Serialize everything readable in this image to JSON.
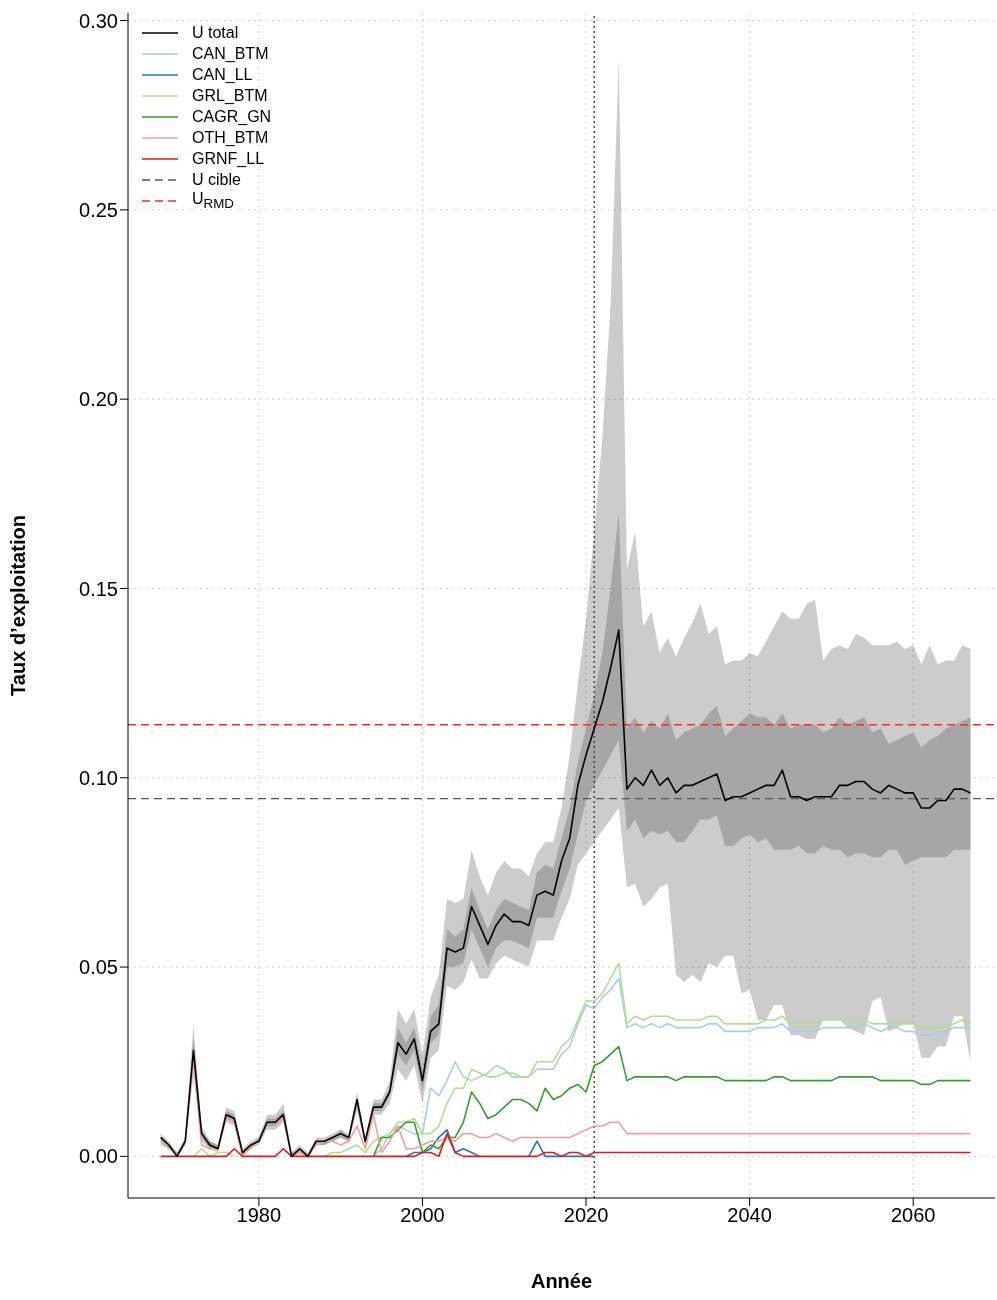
{
  "chart_data": {
    "type": "line",
    "xlabel": "Année",
    "ylabel": "Taux d’exploitation",
    "xlim": [
      1964,
      2070
    ],
    "xticks": [
      1980,
      2000,
      2020,
      2040,
      2060
    ],
    "ylim": [
      -0.011,
      0.302
    ],
    "yticks": [
      {
        "value": 0,
        "label": "0.00"
      },
      {
        "value": 0.05,
        "label": "0.05"
      },
      {
        "value": 0.1,
        "label": "0.10"
      },
      {
        "value": 0.15,
        "label": "0.15"
      },
      {
        "value": 0.2,
        "label": "0.20"
      },
      {
        "value": 0.25,
        "label": "0.25"
      },
      {
        "value": 0.3,
        "label": "0.30"
      }
    ],
    "grid": true,
    "legend": "top left",
    "marker": "none",
    "line_style": "solid",
    "x": [
      1968,
      1969,
      1970,
      1971,
      1972,
      1973,
      1974,
      1975,
      1976,
      1977,
      1978,
      1979,
      1980,
      1981,
      1982,
      1983,
      1984,
      1985,
      1986,
      1987,
      1988,
      1989,
      1990,
      1991,
      1992,
      1993,
      1994,
      1995,
      1996,
      1997,
      1998,
      1999,
      2000,
      2001,
      2002,
      2003,
      2004,
      2005,
      2006,
      2007,
      2008,
      2009,
      2010,
      2011,
      2012,
      2013,
      2014,
      2015,
      2016,
      2017,
      2018,
      2019,
      2020,
      2021,
      2022,
      2023,
      2024,
      2025,
      2026,
      2027,
      2028,
      2029,
      2030,
      2031,
      2032,
      2033,
      2034,
      2035,
      2036,
      2037,
      2038,
      2039,
      2040,
      2041,
      2042,
      2043,
      2044,
      2045,
      2046,
      2047,
      2048,
      2049,
      2050,
      2051,
      2052,
      2053,
      2054,
      2055,
      2056,
      2057,
      2058,
      2059,
      2060,
      2061,
      2062,
      2063,
      2064,
      2065,
      2066,
      2067
    ],
    "series": [
      {
        "name": "U total",
        "color": "#000000",
        "values": [
          0.005,
          0.003,
          0.0,
          0.004,
          0.028,
          0.006,
          0.003,
          0.002,
          0.011,
          0.01,
          0.001,
          0.003,
          0.004,
          0.009,
          0.009,
          0.011,
          0.0,
          0.002,
          0.0,
          0.004,
          0.004,
          0.005,
          0.006,
          0.005,
          0.015,
          0.004,
          0.013,
          0.013,
          0.017,
          0.03,
          0.027,
          0.031,
          0.02,
          0.033,
          0.035,
          0.055,
          0.054,
          0.055,
          0.066,
          0.061,
          0.056,
          0.061,
          0.064,
          0.062,
          0.062,
          0.061,
          0.069,
          0.07,
          0.069,
          0.078,
          0.084,
          0.098,
          0.106,
          0.113,
          0.12,
          0.129,
          0.139,
          0.097,
          0.1,
          0.098,
          0.102,
          0.098,
          0.1,
          0.096,
          0.098,
          0.098,
          0.099,
          0.1,
          0.101,
          0.094,
          0.095,
          0.095,
          0.096,
          0.097,
          0.098,
          0.098,
          0.102,
          0.095,
          0.095,
          0.094,
          0.095,
          0.095,
          0.095,
          0.098,
          0.098,
          0.099,
          0.099,
          0.097,
          0.096,
          0.098,
          0.097,
          0.096,
          0.096,
          0.092,
          0.092,
          0.094,
          0.094,
          0.097,
          0.097,
          0.096
        ],
        "lower": [
          0.003,
          0.002,
          0.0,
          0.003,
          0.021,
          0.004,
          0.002,
          0.001,
          0.009,
          0.008,
          0.0,
          0.002,
          0.003,
          0.007,
          0.007,
          0.009,
          0.0,
          0.001,
          0.0,
          0.003,
          0.003,
          0.004,
          0.005,
          0.004,
          0.012,
          0.003,
          0.011,
          0.011,
          0.014,
          0.023,
          0.02,
          0.024,
          0.014,
          0.026,
          0.028,
          0.045,
          0.044,
          0.046,
          0.052,
          0.047,
          0.047,
          0.051,
          0.053,
          0.052,
          0.051,
          0.05,
          0.057,
          0.057,
          0.057,
          0.063,
          0.068,
          0.077,
          0.08,
          0.083,
          0.086,
          0.089,
          0.092,
          0.071,
          0.072,
          0.066,
          0.068,
          0.071,
          0.072,
          0.048,
          0.046,
          0.048,
          0.046,
          0.051,
          0.05,
          0.053,
          0.053,
          0.043,
          0.044,
          0.036,
          0.036,
          0.04,
          0.04,
          0.032,
          0.032,
          0.031,
          0.031,
          0.036,
          0.036,
          0.036,
          0.034,
          0.033,
          0.032,
          0.041,
          0.042,
          0.033,
          0.034,
          0.035,
          0.035,
          0.026,
          0.026,
          0.029,
          0.029,
          0.037,
          0.037,
          0.025
        ],
        "upper": [
          0.006,
          0.004,
          0.001,
          0.005,
          0.035,
          0.008,
          0.004,
          0.003,
          0.013,
          0.012,
          0.002,
          0.004,
          0.005,
          0.011,
          0.011,
          0.014,
          0.001,
          0.003,
          0.001,
          0.005,
          0.005,
          0.006,
          0.007,
          0.006,
          0.017,
          0.005,
          0.015,
          0.015,
          0.02,
          0.039,
          0.035,
          0.039,
          0.027,
          0.042,
          0.048,
          0.068,
          0.067,
          0.068,
          0.081,
          0.074,
          0.069,
          0.075,
          0.078,
          0.076,
          0.076,
          0.074,
          0.08,
          0.083,
          0.083,
          0.092,
          0.106,
          0.125,
          0.142,
          0.165,
          0.19,
          0.225,
          0.29,
          0.155,
          0.165,
          0.14,
          0.144,
          0.133,
          0.137,
          0.132,
          0.137,
          0.141,
          0.146,
          0.138,
          0.14,
          0.13,
          0.131,
          0.131,
          0.133,
          0.132,
          0.136,
          0.14,
          0.144,
          0.142,
          0.142,
          0.146,
          0.147,
          0.131,
          0.134,
          0.135,
          0.134,
          0.138,
          0.137,
          0.135,
          0.135,
          0.135,
          0.136,
          0.134,
          0.135,
          0.13,
          0.135,
          0.13,
          0.131,
          0.131,
          0.135,
          0.134
        ]
      },
      {
        "color": "#a6a6a6",
        "values": [
          null,
          null,
          null,
          null,
          null,
          null,
          null,
          null,
          null,
          null,
          null,
          null,
          null,
          null,
          null,
          null,
          null,
          null,
          null,
          null,
          null,
          null,
          null,
          null,
          null,
          null,
          null,
          null,
          null,
          null,
          null,
          null,
          null,
          null,
          null,
          null,
          null,
          null,
          null,
          null,
          null,
          null,
          null,
          null,
          null,
          null,
          null,
          null,
          null,
          null,
          null,
          null,
          null,
          null,
          null,
          null,
          null,
          null,
          null,
          null,
          null,
          null,
          null,
          null,
          null,
          null,
          null,
          null,
          null,
          null,
          null,
          null,
          null,
          null,
          null,
          null,
          null,
          null,
          null,
          null,
          null,
          null,
          null,
          null,
          null,
          null,
          null,
          null,
          null,
          null,
          null,
          null,
          null,
          null,
          null,
          null,
          null,
          null,
          null,
          null
        ],
        "lower": [
          0.004,
          0.002,
          0.0,
          0.003,
          0.025,
          0.005,
          0.002,
          0.002,
          0.01,
          0.009,
          0.0,
          0.002,
          0.004,
          0.008,
          0.008,
          0.01,
          0.0,
          0.001,
          0.0,
          0.003,
          0.003,
          0.004,
          0.005,
          0.004,
          0.013,
          0.003,
          0.012,
          0.012,
          0.016,
          0.027,
          0.024,
          0.028,
          0.017,
          0.03,
          0.032,
          0.05,
          0.05,
          0.051,
          0.06,
          0.055,
          0.05,
          0.055,
          0.057,
          0.057,
          0.056,
          0.055,
          0.063,
          0.063,
          0.063,
          0.07,
          0.076,
          0.085,
          0.094,
          0.098,
          0.102,
          0.106,
          0.11,
          0.086,
          0.089,
          0.084,
          0.086,
          0.085,
          0.086,
          0.083,
          0.083,
          0.086,
          0.089,
          0.089,
          0.09,
          0.082,
          0.082,
          0.084,
          0.085,
          0.083,
          0.084,
          0.081,
          0.081,
          0.081,
          0.082,
          0.08,
          0.08,
          0.082,
          0.081,
          0.081,
          0.079,
          0.08,
          0.08,
          0.079,
          0.079,
          0.081,
          0.081,
          0.077,
          0.078,
          0.079,
          0.079,
          0.079,
          0.079,
          0.081,
          0.081,
          0.081
        ],
        "upper": [
          0.005,
          0.003,
          0.001,
          0.004,
          0.031,
          0.007,
          0.004,
          0.003,
          0.012,
          0.011,
          0.001,
          0.003,
          0.005,
          0.01,
          0.01,
          0.012,
          0.001,
          0.002,
          0.0,
          0.004,
          0.004,
          0.005,
          0.007,
          0.005,
          0.016,
          0.004,
          0.014,
          0.014,
          0.018,
          0.034,
          0.03,
          0.034,
          0.023,
          0.037,
          0.04,
          0.06,
          0.058,
          0.06,
          0.071,
          0.065,
          0.06,
          0.065,
          0.068,
          0.067,
          0.066,
          0.065,
          0.075,
          0.077,
          0.076,
          0.084,
          0.092,
          0.104,
          0.113,
          0.122,
          0.133,
          0.15,
          0.17,
          0.113,
          0.116,
          0.112,
          0.115,
          0.113,
          0.117,
          0.11,
          0.112,
          0.113,
          0.114,
          0.117,
          0.119,
          0.111,
          0.113,
          0.115,
          0.117,
          0.116,
          0.116,
          0.114,
          0.117,
          0.113,
          0.114,
          0.114,
          0.114,
          0.112,
          0.113,
          0.116,
          0.114,
          0.115,
          0.116,
          0.112,
          0.113,
          0.109,
          0.11,
          0.111,
          0.112,
          0.108,
          0.11,
          0.111,
          0.113,
          0.114,
          0.115,
          0.116
        ]
      },
      {
        "name": "CAN_BTM",
        "color": "#a6cee3",
        "values": [
          null,
          null,
          null,
          null,
          null,
          null,
          null,
          null,
          null,
          null,
          null,
          null,
          null,
          null,
          null,
          null,
          null,
          null,
          null,
          null,
          null,
          null,
          null,
          null,
          null,
          null,
          0,
          0.002,
          0.006,
          0.008,
          0.007,
          0.006,
          0.006,
          0.018,
          0.016,
          0.02,
          0.025,
          0.021,
          0.02,
          0.021,
          0.022,
          0.024,
          0.023,
          0.021,
          0.021,
          0.021,
          0.023,
          0.023,
          0.023,
          0.027,
          0.029,
          0.035,
          0.04,
          0.039,
          0.042,
          0.044,
          0.047,
          0.034,
          0.035,
          0.034,
          0.035,
          0.034,
          0.035,
          0.034,
          0.034,
          0.034,
          0.034,
          0.035,
          0.035,
          0.033,
          0.033,
          0.033,
          0.033,
          0.034,
          0.034,
          0.034,
          0.035,
          0.033,
          0.033,
          0.033,
          0.033,
          0.034,
          0.034,
          0.034,
          0.034,
          0.034,
          0.035,
          0.034,
          0.033,
          0.034,
          0.034,
          0.033,
          0.033,
          0.032,
          0.032,
          0.033,
          0.033,
          0.034,
          0.034,
          0.034
        ]
      },
      {
        "name": "CAN_LL",
        "color": "#1f78b4",
        "values": [
          null,
          null,
          null,
          null,
          null,
          null,
          null,
          null,
          null,
          null,
          null,
          null,
          null,
          null,
          null,
          null,
          null,
          null,
          null,
          null,
          null,
          null,
          null,
          null,
          null,
          null,
          null,
          null,
          null,
          null,
          0,
          0.001,
          0.001,
          0.002,
          0.005,
          0.007,
          0.001,
          0.002,
          0.001,
          0,
          null,
          null,
          null,
          null,
          null,
          0,
          0.004,
          0,
          0,
          0,
          0,
          0,
          0,
          0,
          null,
          null,
          null,
          null,
          null,
          null,
          null,
          null,
          null,
          null,
          null,
          null,
          null,
          null,
          null,
          null,
          null,
          null,
          null,
          null,
          null,
          null,
          null,
          null,
          null,
          null,
          null,
          null,
          null,
          null,
          null,
          null,
          null,
          null,
          null,
          null,
          null,
          null,
          null,
          null,
          null,
          null,
          null,
          null,
          null,
          null
        ]
      },
      {
        "name": "GRL_BTM",
        "color": "#b2df8a",
        "values": [
          null,
          null,
          null,
          null,
          0,
          0.002,
          0,
          0.001,
          0.001,
          0,
          null,
          null,
          null,
          null,
          null,
          null,
          null,
          null,
          null,
          null,
          0,
          0.001,
          0.001,
          0.002,
          0.003,
          0.001,
          0.004,
          0.005,
          0.006,
          0.009,
          0.009,
          0.01,
          0.006,
          0.006,
          0.008,
          0.014,
          0.018,
          0.018,
          0.023,
          0.022,
          0.021,
          0.021,
          0.022,
          0.022,
          0.021,
          0.021,
          0.025,
          0.025,
          0.025,
          0.029,
          0.031,
          0.036,
          0.041,
          0.041,
          0.043,
          0.047,
          0.051,
          0.035,
          0.037,
          0.036,
          0.037,
          0.037,
          0.037,
          0.036,
          0.036,
          0.036,
          0.036,
          0.037,
          0.037,
          0.035,
          0.035,
          0.035,
          0.035,
          0.035,
          0.036,
          0.036,
          0.037,
          0.035,
          0.035,
          0.035,
          0.035,
          0.036,
          0.036,
          0.036,
          0.036,
          0.036,
          0.036,
          0.035,
          0.035,
          0.035,
          0.035,
          0.035,
          0.035,
          0.034,
          0.034,
          0.034,
          0.034,
          0.035,
          0.036,
          0.035
        ]
      },
      {
        "name": "CAGR_GN",
        "color": "#33a02c",
        "values": [
          null,
          null,
          null,
          null,
          null,
          null,
          null,
          null,
          null,
          null,
          null,
          null,
          null,
          null,
          null,
          null,
          null,
          null,
          null,
          null,
          null,
          null,
          null,
          null,
          null,
          null,
          0,
          0.005,
          0.005,
          0.007,
          0.009,
          0.009,
          0.001,
          0.003,
          0.002,
          0.005,
          0.005,
          0.009,
          0.017,
          0.014,
          0.01,
          0.011,
          0.013,
          0.015,
          0.015,
          0.014,
          0.012,
          0.018,
          0.015,
          0.016,
          0.018,
          0.019,
          0.017,
          0.024,
          0.025,
          0.027,
          0.029,
          0.02,
          0.021,
          0.021,
          0.021,
          0.021,
          0.021,
          0.02,
          0.021,
          0.021,
          0.021,
          0.021,
          0.021,
          0.02,
          0.02,
          0.02,
          0.02,
          0.02,
          0.02,
          0.021,
          0.021,
          0.02,
          0.02,
          0.02,
          0.02,
          0.02,
          0.02,
          0.021,
          0.021,
          0.021,
          0.021,
          0.021,
          0.02,
          0.02,
          0.02,
          0.02,
          0.02,
          0.019,
          0.019,
          0.02,
          0.02,
          0.02,
          0.02,
          0.02
        ]
      },
      {
        "name": "OTH_BTM",
        "color": "#fb9a99",
        "values": [
          0.004,
          0.003,
          0.0,
          0.004,
          0.026,
          0.003,
          0.002,
          0.002,
          0.011,
          0.009,
          0.0,
          0.003,
          0.004,
          0.009,
          0.009,
          0.01,
          0.0,
          0.001,
          0.0,
          0.003,
          0.004,
          0.004,
          0.003,
          0.004,
          0.008,
          0.002,
          0.011,
          0.001,
          0.004,
          0.008,
          0.002,
          0.002,
          0.003,
          0.004,
          0.004,
          0.005,
          0.004,
          0.006,
          0.006,
          0.005,
          0.005,
          0.006,
          0.005,
          0.004,
          0.005,
          0.005,
          0.005,
          0.005,
          0.005,
          0.005,
          0.005,
          0.006,
          0.007,
          0.008,
          0.008,
          0.009,
          0.009,
          0.006,
          0.006,
          0.006,
          0.006,
          0.006,
          0.006,
          0.006,
          0.006,
          0.006,
          0.006,
          0.006,
          0.006,
          0.006,
          0.006,
          0.006,
          0.006,
          0.006,
          0.006,
          0.006,
          0.006,
          0.006,
          0.006,
          0.006,
          0.006,
          0.006,
          0.006,
          0.006,
          0.006,
          0.006,
          0.006,
          0.006,
          0.006,
          0.006,
          0.006,
          0.006,
          0.006,
          0.006,
          0.006,
          0.006,
          0.006,
          0.006,
          0.006,
          0.006
        ]
      },
      {
        "name": "GRNF_LL",
        "color": "#e31a1c",
        "values": [
          0,
          0,
          0,
          0,
          0,
          0,
          0,
          0,
          0,
          0.002,
          0,
          0,
          0,
          0,
          0,
          0.002,
          0,
          0,
          0,
          0,
          0,
          0,
          0,
          0,
          0,
          0,
          0,
          0,
          0,
          0,
          0,
          0,
          0.001,
          0.001,
          0,
          0.006,
          0.001,
          0,
          0,
          0,
          0,
          0,
          0,
          0,
          0,
          0,
          0,
          0.001,
          0.001,
          0,
          0.001,
          0.001,
          0,
          0.001,
          0.001,
          0.001,
          0.001,
          0.001,
          0.001,
          0.001,
          0.001,
          0.001,
          0.001,
          0.001,
          0.001,
          0.001,
          0.001,
          0.001,
          0.001,
          0.001,
          0.001,
          0.001,
          0.001,
          0.001,
          0.001,
          0.001,
          0.001,
          0.001,
          0.001,
          0.001,
          0.001,
          0.001,
          0.001,
          0.001,
          0.001,
          0.001,
          0.001,
          0.001,
          0.001,
          0.001,
          0.001,
          0.001,
          0.001,
          0.001,
          0.001,
          0.001,
          0.001,
          0.001,
          0.001,
          0.001
        ]
      }
    ],
    "ref_lines": [
      {
        "axis": "y",
        "value": 0.0945,
        "label": "U cible",
        "color": "#555555",
        "line_style": "dashed"
      },
      {
        "axis": "y",
        "value": 0.114,
        "label": "U$_{RMD}$",
        "color": "#ff2a1a",
        "line_style": "dashed"
      },
      {
        "axis": "x",
        "value": 2021,
        "color": "#333333",
        "line_style": "dotted"
      }
    ]
  }
}
